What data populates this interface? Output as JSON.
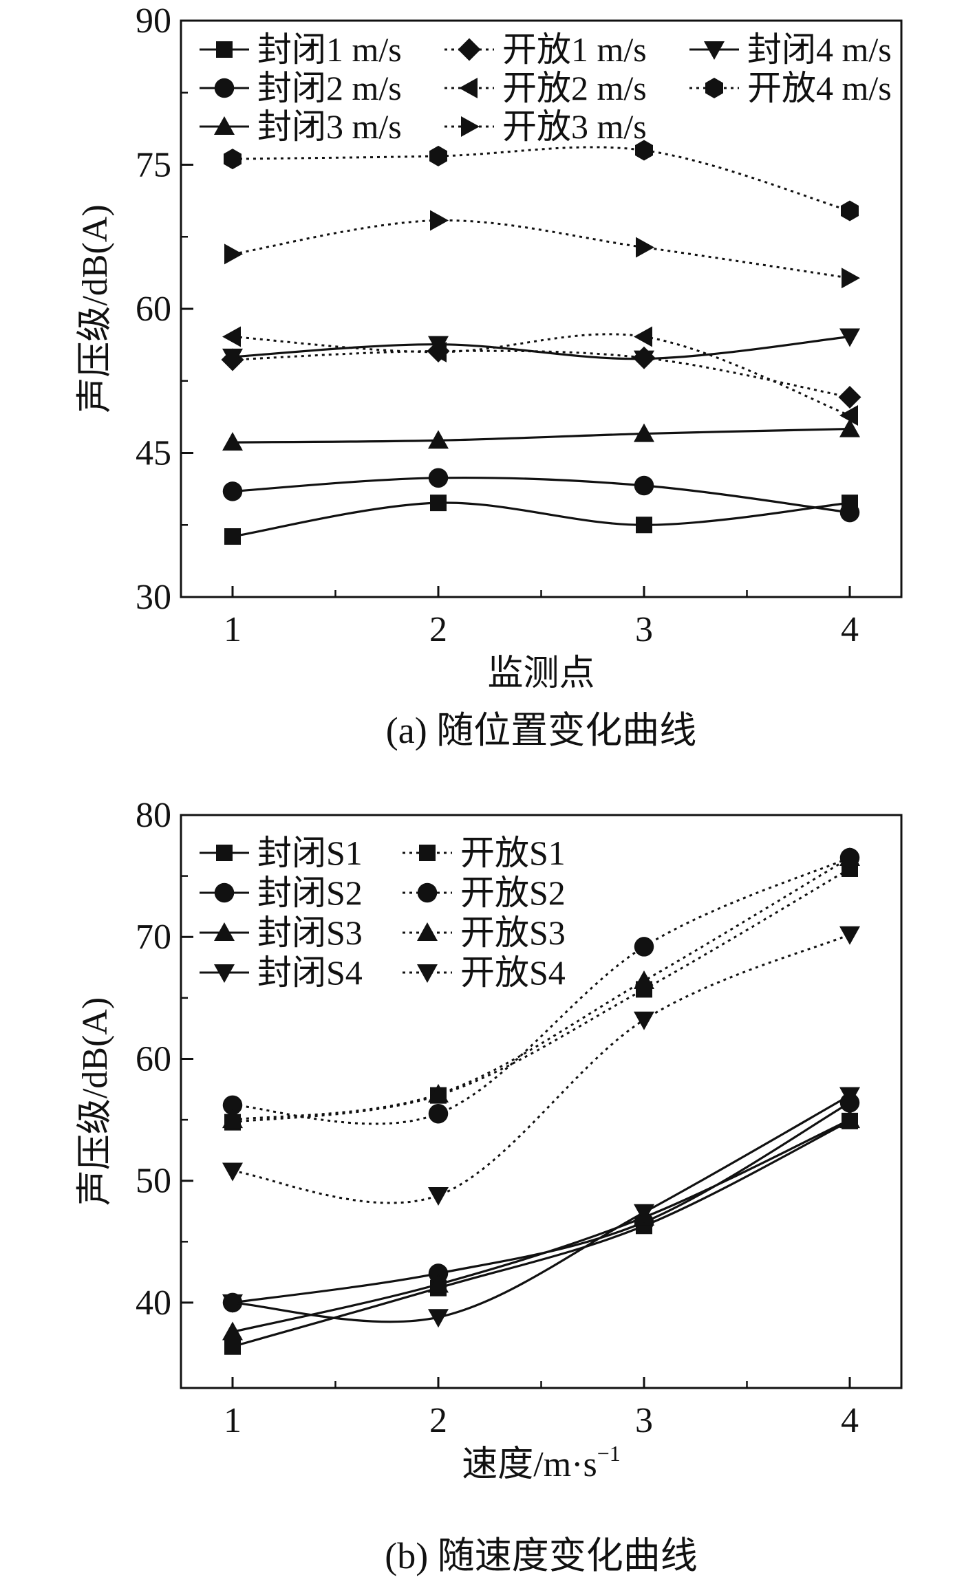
{
  "chart_data": [
    {
      "type": "line",
      "caption": "(a) 随位置变化曲线",
      "xlabel": "监测点",
      "ylabel": "声压级/dB(A)",
      "categories": [
        1,
        2,
        3,
        4
      ],
      "ylim": [
        30,
        90
      ],
      "yticks": [
        30,
        45,
        60,
        75,
        90
      ],
      "legend_columns": [
        [
          "封闭1 m/s",
          "封闭2 m/s",
          "封闭3 m/s"
        ],
        [
          "开放1 m/s",
          "开放2 m/s",
          "开放3 m/s"
        ],
        [
          "封闭4 m/s",
          "开放4 m/s"
        ]
      ],
      "series": [
        {
          "name": "封闭1 m/s",
          "marker": "square",
          "style": "solid",
          "values": [
            36.3,
            39.8,
            37.5,
            39.8
          ]
        },
        {
          "name": "封闭2 m/s",
          "marker": "circle",
          "style": "solid",
          "values": [
            41.0,
            42.4,
            41.6,
            38.8
          ]
        },
        {
          "name": "封闭3 m/s",
          "marker": "triangle-up",
          "style": "solid",
          "values": [
            46.1,
            46.3,
            47.0,
            47.5
          ]
        },
        {
          "name": "开放1 m/s",
          "marker": "diamond",
          "style": "dotted",
          "values": [
            54.7,
            55.6,
            54.9,
            50.8
          ]
        },
        {
          "name": "开放2 m/s",
          "marker": "triangle-left",
          "style": "dotted",
          "values": [
            57.1,
            55.5,
            57.1,
            48.9
          ]
        },
        {
          "name": "开放3 m/s",
          "marker": "triangle-right",
          "style": "dotted",
          "values": [
            65.7,
            69.2,
            66.4,
            63.2
          ]
        },
        {
          "name": "封闭4 m/s",
          "marker": "triangle-down",
          "style": "solid",
          "values": [
            55.0,
            56.3,
            54.8,
            57.1
          ]
        },
        {
          "name": "开放4 m/s",
          "marker": "hexagon",
          "style": "dotted",
          "values": [
            75.6,
            75.9,
            76.5,
            70.2
          ]
        }
      ]
    },
    {
      "type": "line",
      "caption": "(b) 随速度变化曲线",
      "xlabel": "速度/m·s",
      "xlabel_sup": "−1",
      "ylabel": "声压级/dB(A)",
      "categories": [
        1,
        2,
        3,
        4
      ],
      "ylim": [
        33,
        80
      ],
      "yticks": [
        40,
        50,
        60,
        70,
        80
      ],
      "legend_columns": [
        [
          "封闭S1",
          "封闭S2",
          "封闭S3",
          "封闭S4"
        ],
        [
          "开放S1",
          "开放S2",
          "开放S3",
          "开放S4"
        ]
      ],
      "series": [
        {
          "name": "封闭S1",
          "marker": "square",
          "style": "solid",
          "values": [
            36.4,
            41.2,
            46.3,
            54.9
          ]
        },
        {
          "name": "封闭S2",
          "marker": "circle",
          "style": "solid",
          "values": [
            40.0,
            42.4,
            46.6,
            56.4
          ]
        },
        {
          "name": "封闭S3",
          "marker": "triangle-up",
          "style": "solid",
          "values": [
            37.6,
            41.5,
            47.0,
            55.0
          ]
        },
        {
          "name": "封闭S4",
          "marker": "triangle-down",
          "style": "solid",
          "values": [
            40.0,
            38.8,
            47.4,
            57.0
          ]
        },
        {
          "name": "开放S1",
          "marker": "square",
          "style": "dotted",
          "values": [
            54.8,
            57.0,
            65.7,
            75.6
          ]
        },
        {
          "name": "开放S2",
          "marker": "circle",
          "style": "dotted",
          "values": [
            56.2,
            55.5,
            69.2,
            76.5
          ]
        },
        {
          "name": "开放S3",
          "marker": "triangle-up",
          "style": "dotted",
          "values": [
            55.0,
            57.1,
            66.4,
            76.5
          ]
        },
        {
          "name": "开放S4",
          "marker": "triangle-down",
          "style": "dotted",
          "values": [
            50.8,
            48.8,
            63.2,
            70.2
          ]
        }
      ]
    }
  ]
}
